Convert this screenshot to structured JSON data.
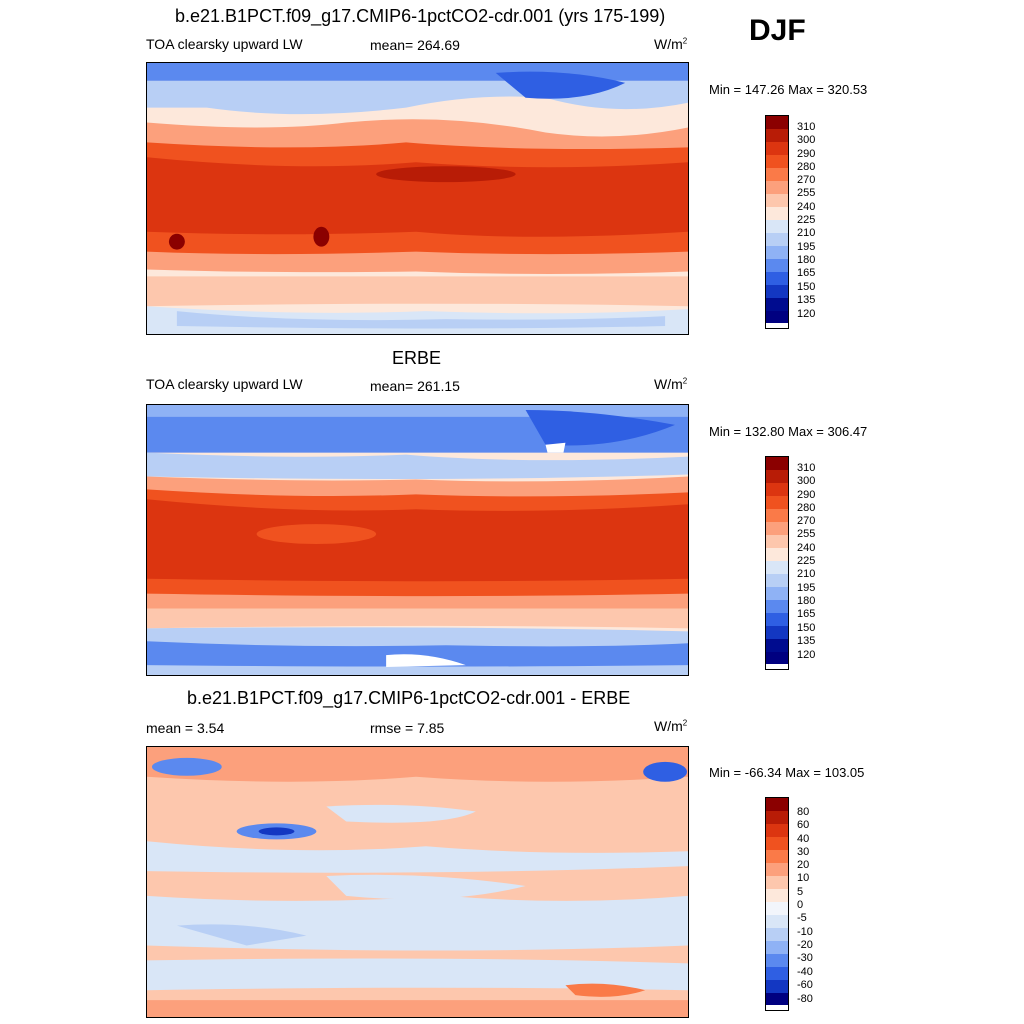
{
  "season": "DJF",
  "panels": [
    {
      "title": "b.e21.B1PCT.f09_g17.CMIP6-1pctCO2-cdr.001 (yrs 175-199)",
      "left_label": "TOA clearsky upward LW",
      "center_label": "mean= 264.69",
      "units": "W/m",
      "units_sup": "2",
      "minmax": "Min = 147.26 Max = 320.53",
      "colorbar_labels": [
        "310",
        "300",
        "290",
        "280",
        "270",
        "255",
        "240",
        "225",
        "210",
        "195",
        "180",
        "165",
        "150",
        "135",
        "120"
      ]
    },
    {
      "title": "ERBE",
      "left_label": "TOA clearsky upward LW",
      "center_label": "mean= 261.15",
      "units": "W/m",
      "units_sup": "2",
      "minmax": "Min = 132.80 Max = 306.47",
      "colorbar_labels": [
        "310",
        "300",
        "290",
        "280",
        "270",
        "255",
        "240",
        "225",
        "210",
        "195",
        "180",
        "165",
        "150",
        "135",
        "120"
      ]
    },
    {
      "title": "b.e21.B1PCT.f09_g17.CMIP6-1pctCO2-cdr.001 - ERBE",
      "left_label": "mean =   3.54",
      "center_label": "rmse =   7.85",
      "units": "W/m",
      "units_sup": "2",
      "minmax": "Min = -66.34 Max = 103.05",
      "colorbar_labels": [
        "80",
        "60",
        "40",
        "30",
        "20",
        "10",
        "5",
        "0",
        "-5",
        "-10",
        "-20",
        "-30",
        "-40",
        "-60",
        "-80"
      ]
    }
  ],
  "colors": {
    "abs_scale": [
      "#8b0000",
      "#b81c06",
      "#dc3510",
      "#f0521f",
      "#fa7a48",
      "#fca07c",
      "#fdc7ad",
      "#fde8db",
      "#d9e6f7",
      "#b8cff5",
      "#8fb2f5",
      "#5b89ef",
      "#2f5fe3",
      "#1337c2",
      "#000c8f",
      "#000080"
    ],
    "diff_scale": [
      "#8b0000",
      "#b81c06",
      "#dc3510",
      "#f0521f",
      "#fa7a48",
      "#fca07c",
      "#fdc7ad",
      "#fde8db",
      "#f2f5fb",
      "#d9e6f7",
      "#b8cff5",
      "#8fb2f5",
      "#5b89ef",
      "#2f5fe3",
      "#1337c2",
      "#000080"
    ]
  }
}
